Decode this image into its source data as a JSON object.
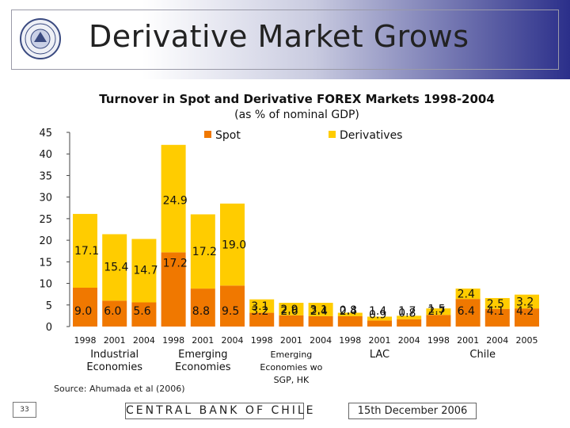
{
  "slide": {
    "title": "Derivative Market Grows",
    "source": "Source: Ahumada et al (2006)",
    "page_number": "33",
    "footer_bank": "CENTRAL BANK OF CHILE",
    "footer_date": "15th December 2006"
  },
  "colors": {
    "spot": "#f07800",
    "derivatives": "#ffcc00",
    "header_accent": "#2b2f8a"
  },
  "chart_data": {
    "type": "bar",
    "stacked": true,
    "title": "Turnover in Spot and Derivative FOREX Markets 1998-2004",
    "subtitle": "(as % of nominal GDP)",
    "xlabel": "",
    "ylabel": "",
    "ylim": [
      0,
      45
    ],
    "yticks": [
      0,
      5,
      10,
      15,
      20,
      25,
      30,
      35,
      40,
      45
    ],
    "grid": false,
    "legend": "top",
    "categories": [
      "1998",
      "2001",
      "2004",
      "1998",
      "2001",
      "2004",
      "1998",
      "2001",
      "2004",
      "1998",
      "2001",
      "2004",
      "1998",
      "2001",
      "2004",
      "2005"
    ],
    "groups": [
      {
        "label": "Industrial Economies",
        "start": 0,
        "end": 2
      },
      {
        "label": "Emerging Economies",
        "start": 3,
        "end": 5
      },
      {
        "label": "Emerging Economies wo SGP, HK",
        "start": 6,
        "end": 8
      },
      {
        "label": "LAC",
        "start": 9,
        "end": 11
      },
      {
        "label": "Chile",
        "start": 12,
        "end": 15
      }
    ],
    "series": [
      {
        "name": "Spot",
        "values": [
          9.0,
          6.0,
          5.6,
          17.2,
          8.8,
          9.5,
          3.2,
          2.6,
          2.4,
          2.4,
          1.4,
          1.7,
          2.7,
          6.4,
          4.1,
          4.2
        ]
      },
      {
        "name": "Derivatives",
        "values": [
          17.1,
          15.4,
          14.7,
          24.9,
          17.2,
          19.0,
          3.1,
          2.9,
          3.1,
          0.8,
          0.9,
          0.8,
          1.5,
          2.4,
          2.5,
          3.2
        ]
      }
    ]
  }
}
